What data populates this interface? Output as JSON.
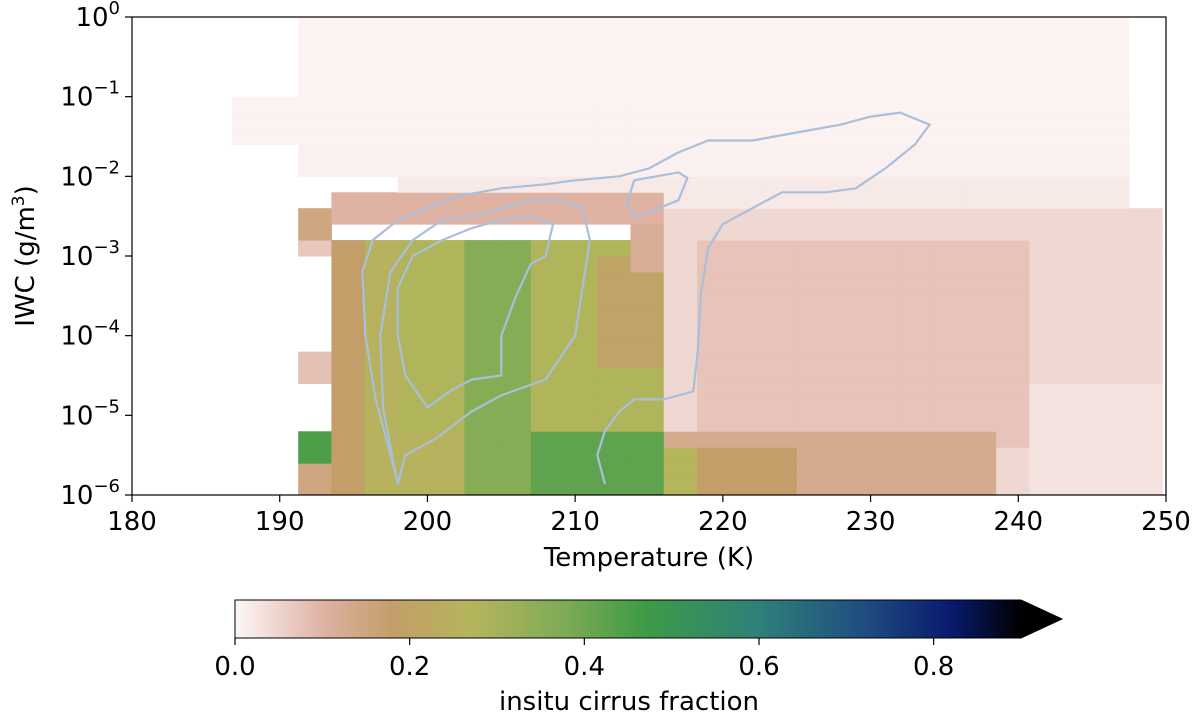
{
  "chart_data": {
    "type": "heatmap",
    "xlabel": "Temperature (K)",
    "ylabel_main": "IWC (g/m",
    "ylabel_sup": "3",
    "ylabel_tail": ")",
    "xlim": [
      180,
      250
    ],
    "ylim": [
      1e-06,
      1
    ],
    "y_scale": "log",
    "x_ticks": [
      180,
      190,
      200,
      210,
      220,
      230,
      240,
      250
    ],
    "x_tick_labels": [
      "180",
      "190",
      "200",
      "210",
      "220",
      "230",
      "240",
      "250"
    ],
    "y_ticks": [
      {
        "base": "10",
        "exp": "0"
      },
      {
        "base": "10",
        "exp": "−1"
      },
      {
        "base": "10",
        "exp": "−2"
      },
      {
        "base": "10",
        "exp": "−3"
      },
      {
        "base": "10",
        "exp": "−4"
      },
      {
        "base": "10",
        "exp": "−5"
      },
      {
        "base": "10",
        "exp": "−6"
      }
    ],
    "grid": {
      "x_start": 180,
      "x_step": 2.25,
      "y_start_log": -6,
      "y_step_log": 0.2,
      "cols": 31,
      "rows": 30
    },
    "colorbar": {
      "label": "insitu cirrus fraction",
      "range": [
        0,
        0.9
      ],
      "extend": "max",
      "ticks": [
        "0.0",
        "0.2",
        "0.4",
        "0.6",
        "0.8"
      ],
      "tick_values": [
        0.0,
        0.2,
        0.4,
        0.6,
        0.8
      ],
      "stops": [
        {
          "v": 0.0,
          "color": "#fdf7f7"
        },
        {
          "v": 0.1,
          "color": "#dfb2a4"
        },
        {
          "v": 0.18,
          "color": "#c39e69"
        },
        {
          "v": 0.27,
          "color": "#b5b55c"
        },
        {
          "v": 0.38,
          "color": "#7caa55"
        },
        {
          "v": 0.47,
          "color": "#3e9b45"
        },
        {
          "v": 0.6,
          "color": "#2e8079"
        },
        {
          "v": 0.72,
          "color": "#1f4d80"
        },
        {
          "v": 0.82,
          "color": "#081a6f"
        },
        {
          "v": 0.9,
          "color": "#000000"
        }
      ]
    },
    "regions": [
      {
        "x": [
          192.0,
          248.0
        ],
        "y": [
          -1.0,
          0.0
        ],
        "v": 0.005
      },
      {
        "x": [
          186.0,
          248.0
        ],
        "y": [
          -1.6,
          -1.0
        ],
        "v": 0.007
      },
      {
        "x": [
          192.0,
          248.0
        ],
        "y": [
          -2.0,
          -1.6
        ],
        "v": 0.01
      },
      {
        "x": [
          198.0,
          248.0
        ],
        "y": [
          -2.4,
          -2.0
        ],
        "v": 0.02
      },
      {
        "x": [
          214.0,
          250.0
        ],
        "y": [
          -6.0,
          -2.4
        ],
        "v": 0.045
      },
      {
        "x": [
          218.0,
          240.0
        ],
        "y": [
          -5.4,
          -2.8
        ],
        "v": 0.075
      },
      {
        "x": [
          240.0,
          250.0
        ],
        "y": [
          -6.0,
          -4.6
        ],
        "v": 0.03
      },
      {
        "x": [
          214.5,
          238.0
        ],
        "y": [
          -6.0,
          -5.2
        ],
        "v": 0.13
      },
      {
        "x": [
          216.0,
          218.5
        ],
        "y": [
          -6.0,
          -5.4
        ],
        "v": 0.27
      },
      {
        "x": [
          218.5,
          224.0
        ],
        "y": [
          -6.0,
          -5.4
        ],
        "v": 0.18
      },
      {
        "x": [
          194.5,
          216.5
        ],
        "y": [
          -2.6,
          -2.2
        ],
        "v": 0.1
      },
      {
        "x": [
          192.0,
          194.5
        ],
        "y": [
          -2.8,
          -2.4
        ],
        "v": 0.15
      },
      {
        "x": [
          192.0,
          194.5
        ],
        "y": [
          -3.0,
          -2.8
        ],
        "v": 0.07
      },
      {
        "x": [
          192.0,
          194.5
        ],
        "y": [
          -4.6,
          -4.3
        ],
        "v": 0.08
      },
      {
        "x": [
          192.0,
          194.5
        ],
        "y": [
          -5.6,
          -5.3
        ],
        "v": 0.45
      },
      {
        "x": [
          192.0,
          194.5
        ],
        "y": [
          -6.0,
          -5.6
        ],
        "v": 0.15
      },
      {
        "x": [
          194.5,
          196.5
        ],
        "y": [
          -6.0,
          -2.8
        ],
        "v": 0.18
      },
      {
        "x": [
          196.5,
          203.0
        ],
        "y": [
          -6.0,
          -2.8
        ],
        "v": 0.26
      },
      {
        "x": [
          199.0,
          203.0
        ],
        "y": [
          -5.2,
          -2.8
        ],
        "v": 0.28
      },
      {
        "x": [
          203.0,
          208.0
        ],
        "y": [
          -6.0,
          -2.8
        ],
        "v": 0.36
      },
      {
        "x": [
          206.5,
          208.0
        ],
        "y": [
          -5.6,
          -4.2
        ],
        "v": 0.4
      },
      {
        "x": [
          208.0,
          216.0
        ],
        "y": [
          -5.2,
          -2.8
        ],
        "v": 0.28
      },
      {
        "x": [
          208.0,
          216.0
        ],
        "y": [
          -6.0,
          -5.2
        ],
        "v": 0.42
      },
      {
        "x": [
          212.0,
          216.0
        ],
        "y": [
          -4.4,
          -3.0
        ],
        "v": 0.2
      },
      {
        "x": [
          214.0,
          216.0
        ],
        "y": [
          -3.2,
          -2.6
        ],
        "v": 0.12
      }
    ],
    "contours": [
      {
        "color": "#a9bfdb",
        "points": [
          [
            198.0,
            -5.85
          ],
          [
            197.5,
            -5.5
          ],
          [
            196.5,
            -4.8
          ],
          [
            195.8,
            -4.0
          ],
          [
            195.6,
            -3.2
          ],
          [
            196.3,
            -2.8
          ],
          [
            198.0,
            -2.55
          ],
          [
            200.0,
            -2.4
          ],
          [
            202.0,
            -2.25
          ],
          [
            205.0,
            -2.15
          ],
          [
            208.0,
            -2.1
          ],
          [
            210.0,
            -2.05
          ],
          [
            213.0,
            -2.0
          ],
          [
            215.0,
            -1.9
          ],
          [
            217.0,
            -1.7
          ],
          [
            219.0,
            -1.55
          ],
          [
            222.0,
            -1.55
          ],
          [
            225.0,
            -1.45
          ],
          [
            228.0,
            -1.35
          ],
          [
            230.0,
            -1.25
          ],
          [
            232.0,
            -1.2
          ],
          [
            234.0,
            -1.35
          ],
          [
            233.0,
            -1.6
          ],
          [
            231.0,
            -1.9
          ],
          [
            229.0,
            -2.15
          ],
          [
            227.0,
            -2.2
          ],
          [
            224.0,
            -2.2
          ],
          [
            222.0,
            -2.4
          ],
          [
            220.0,
            -2.6
          ],
          [
            219.0,
            -2.9
          ],
          [
            218.5,
            -3.5
          ],
          [
            218.3,
            -4.2
          ],
          [
            218.0,
            -4.7
          ],
          [
            216.0,
            -4.8
          ],
          [
            214.0,
            -4.8
          ],
          [
            213.0,
            -4.95
          ],
          [
            212.0,
            -5.2
          ],
          [
            211.5,
            -5.5
          ],
          [
            212.0,
            -5.85
          ]
        ]
      },
      {
        "color": "#a9bfdb",
        "points": [
          [
            213.5,
            -2.35
          ],
          [
            214.0,
            -2.05
          ],
          [
            215.5,
            -2.0
          ],
          [
            217.0,
            -1.95
          ],
          [
            217.6,
            -2.02
          ],
          [
            217.0,
            -2.3
          ],
          [
            215.0,
            -2.45
          ],
          [
            214.0,
            -2.5
          ],
          [
            213.5,
            -2.35
          ]
        ]
      },
      {
        "color": "#a9bfdb",
        "points": [
          [
            198.0,
            -5.85
          ],
          [
            197.6,
            -5.5
          ],
          [
            197.0,
            -4.9
          ],
          [
            196.8,
            -4.0
          ],
          [
            197.5,
            -3.2
          ],
          [
            199.0,
            -2.8
          ],
          [
            201.0,
            -2.55
          ],
          [
            203.0,
            -2.5
          ],
          [
            205.0,
            -2.4
          ],
          [
            207.0,
            -2.3
          ],
          [
            209.0,
            -2.3
          ],
          [
            210.5,
            -2.4
          ],
          [
            211.0,
            -2.8
          ],
          [
            210.5,
            -3.4
          ],
          [
            210.0,
            -4.0
          ],
          [
            208.0,
            -4.55
          ],
          [
            205.0,
            -4.75
          ],
          [
            203.0,
            -4.95
          ],
          [
            200.5,
            -5.3
          ],
          [
            198.5,
            -5.5
          ],
          [
            198.0,
            -5.85
          ]
        ]
      },
      {
        "color": "#a9bfdb",
        "points": [
          [
            200.0,
            -4.9
          ],
          [
            198.5,
            -4.5
          ],
          [
            198.0,
            -4.0
          ],
          [
            198.0,
            -3.4
          ],
          [
            199.0,
            -3.0
          ],
          [
            201.0,
            -2.8
          ],
          [
            203.0,
            -2.65
          ],
          [
            205.0,
            -2.55
          ],
          [
            207.0,
            -2.5
          ],
          [
            208.5,
            -2.6
          ],
          [
            208.0,
            -3.0
          ],
          [
            207.0,
            -3.1
          ],
          [
            206.0,
            -3.5
          ],
          [
            205.0,
            -4.0
          ],
          [
            205.0,
            -4.5
          ],
          [
            203.0,
            -4.55
          ],
          [
            201.5,
            -4.7
          ],
          [
            200.0,
            -4.9
          ]
        ]
      }
    ]
  }
}
